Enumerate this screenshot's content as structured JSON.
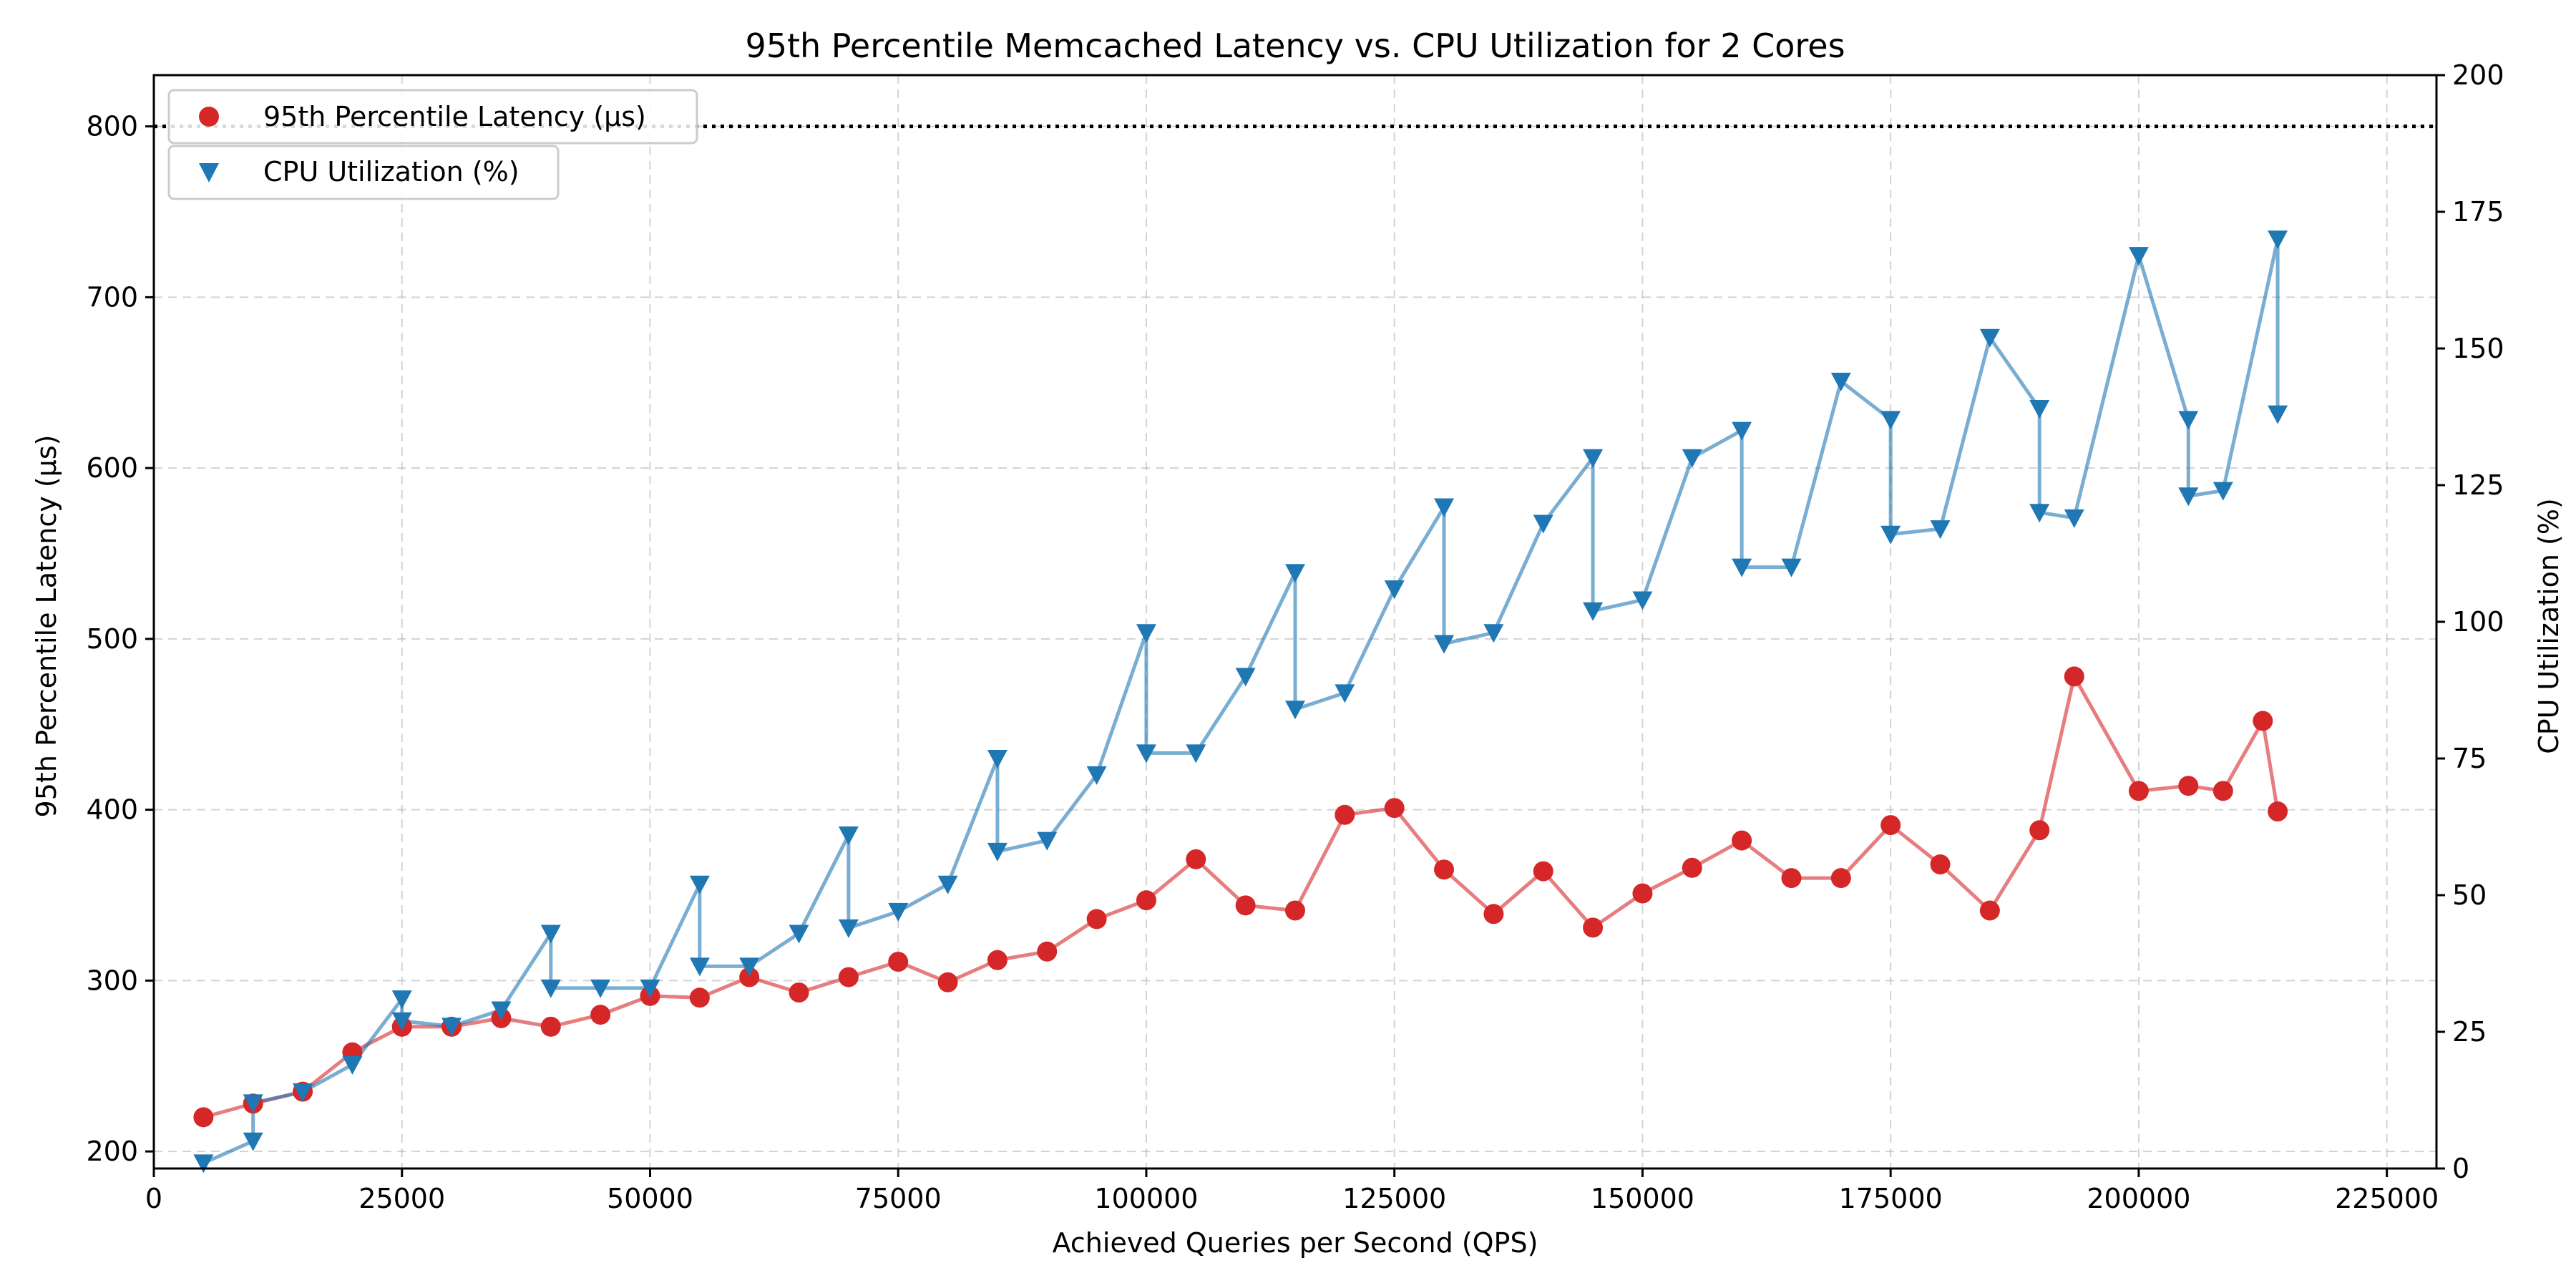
{
  "chart_data": {
    "type": "line",
    "title": "95th Percentile Memcached Latency vs. CPU Utilization for 2 Cores",
    "xlabel": "Achieved Queries per Second (QPS)",
    "ylabel": "95th Percentile Latency (µs)",
    "y2label": "CPU Utilization (%)",
    "xlim": [
      0,
      230000
    ],
    "ylim": [
      190,
      830
    ],
    "y2lim": [
      0,
      200
    ],
    "xticks": [
      0,
      25000,
      50000,
      75000,
      100000,
      125000,
      150000,
      175000,
      200000,
      225000
    ],
    "yticks": [
      200,
      300,
      400,
      500,
      600,
      700,
      800
    ],
    "y2ticks": [
      0,
      25,
      50,
      75,
      100,
      125,
      150,
      175,
      200
    ],
    "grid": true,
    "legend_position": "top-left",
    "slo_line": 800,
    "colors": {
      "latency": "#d62728",
      "cpu": "#1f77b4"
    },
    "series": [
      {
        "name": "95th Percentile Latency (µs)",
        "axis": "left",
        "marker": "circle",
        "x": [
          5000,
          10000,
          15000,
          20000,
          25000,
          30000,
          35000,
          40000,
          45000,
          50000,
          55000,
          60000,
          65000,
          70000,
          75000,
          80000,
          85000,
          90000,
          95000,
          100000,
          105000,
          110000,
          115000,
          120000,
          125000,
          130000,
          135000,
          140000,
          145000,
          150000,
          155000,
          160000,
          165000,
          170000,
          175000,
          180000,
          185000,
          190000,
          193500,
          200000,
          205000,
          208500,
          212500,
          214000
        ],
        "y": [
          220,
          228,
          235,
          258,
          273,
          273,
          278,
          273,
          280,
          291,
          290,
          302,
          293,
          302,
          311,
          299,
          312,
          317,
          336,
          347,
          371,
          344,
          341,
          397,
          401,
          365,
          339,
          364,
          331,
          351,
          366,
          382,
          360,
          360,
          391,
          368,
          341,
          388,
          478,
          411,
          414,
          411,
          452,
          399
        ]
      },
      {
        "name": "CPU Utilization (%)",
        "axis": "right",
        "marker": "triangle-down",
        "x": [
          5000,
          10000,
          10000,
          15000,
          20000,
          25000,
          25000,
          30000,
          35000,
          40000,
          40000,
          45000,
          50000,
          55000,
          55000,
          60000,
          65000,
          70000,
          70000,
          75000,
          80000,
          85000,
          85000,
          90000,
          95000,
          100000,
          100000,
          105000,
          110000,
          115000,
          115000,
          120000,
          125000,
          130000,
          130000,
          135000,
          140000,
          145000,
          145000,
          150000,
          155000,
          160000,
          160000,
          165000,
          170000,
          175000,
          175000,
          180000,
          185000,
          190000,
          190000,
          193500,
          200000,
          205000,
          205000,
          208500,
          214000,
          214000
        ],
        "y": [
          1,
          5,
          12,
          14,
          19,
          31,
          27,
          26,
          29,
          43,
          33,
          33,
          33,
          52,
          37,
          37,
          43,
          61,
          44,
          47,
          52,
          75,
          58,
          60,
          72,
          98,
          76,
          76,
          90,
          109,
          84,
          87,
          106,
          121,
          96,
          98,
          118,
          130,
          102,
          104,
          130,
          135,
          110,
          110,
          144,
          137,
          116,
          117,
          152,
          139,
          120,
          119,
          167,
          137,
          123,
          124,
          170,
          138
        ]
      }
    ]
  }
}
